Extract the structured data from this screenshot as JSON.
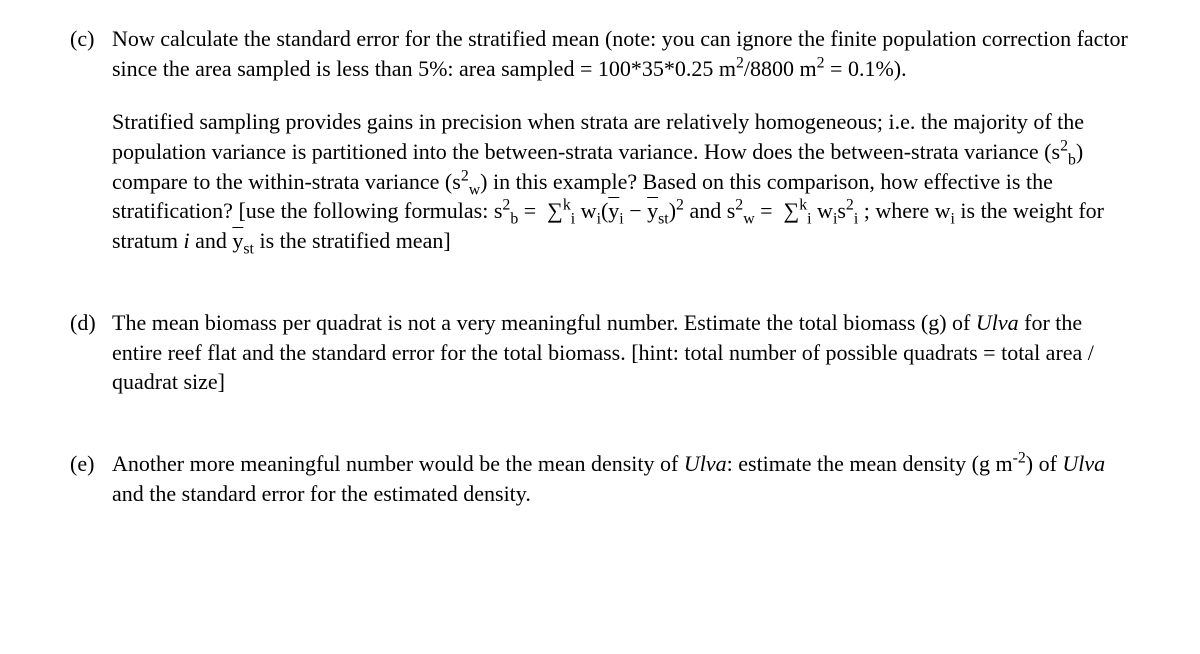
{
  "items": [
    {
      "label": "(c)",
      "paragraphs": [
        "Now calculate the standard error for the stratified mean (note: you can ignore the finite population correction factor since the area sampled is less than 5%: area sampled = 100*35*0.25 m<span class=\"sup\">2</span>/8800 m<span class=\"sup\">2</span> = 0.1%).",
        "Stratified sampling provides gains in precision when strata are relatively homogeneous; i.e. the majority of the population variance is partitioned into the between-strata variance. How does the between-strata variance (s<span class=\"sup\">2</span><span class=\"sub\">b</span>) compare to the within-strata variance (s<span class=\"sup\">2</span><span class=\"sub\">w</span>) in this example? Based on this comparison, how effective is the stratification? [use the following formulas: s<span class=\"sup\">2</span><span class=\"sub\">b</span> = &nbsp;∑<span class=\"sup\">k</span><span class=\"sub\">i</span> w<span class=\"sub\">i</span>(<span class=\"overline\">y</span><span class=\"sub\">i</span> − <span class=\"overline\">y</span><span class=\"sub\">st</span>)<span class=\"sup\">2</span> and s<span class=\"sup\">2</span><span class=\"sub\">w</span> = &nbsp;∑<span class=\"sup\">k</span><span class=\"sub\">i</span> w<span class=\"sub\">i</span>s<span class=\"sup\">2</span><span class=\"sub\">i</span> ; where w<span class=\"sub\">i</span> is the weight for stratum <span class=\"italic\">i</span> and <span class=\"overline\">y</span><span class=\"sub\">st</span> is the stratified mean]"
      ]
    },
    {
      "label": "(d)",
      "paragraphs": [
        "The mean biomass per quadrat is not a very meaningful number. Estimate the total biomass (g) of <span class=\"italic\">Ulva</span> for the entire reef flat and the standard error for the total biomass. [hint: total number of possible quadrats = total area / quadrat size]"
      ]
    },
    {
      "label": "(e)",
      "paragraphs": [
        "Another more meaningful number would be the mean density of <span class=\"italic\">Ulva</span>: estimate the mean density (g m<span class=\"sup\">-2</span>) of <span class=\"italic\">Ulva</span> and the standard error for the estimated density."
      ]
    }
  ]
}
